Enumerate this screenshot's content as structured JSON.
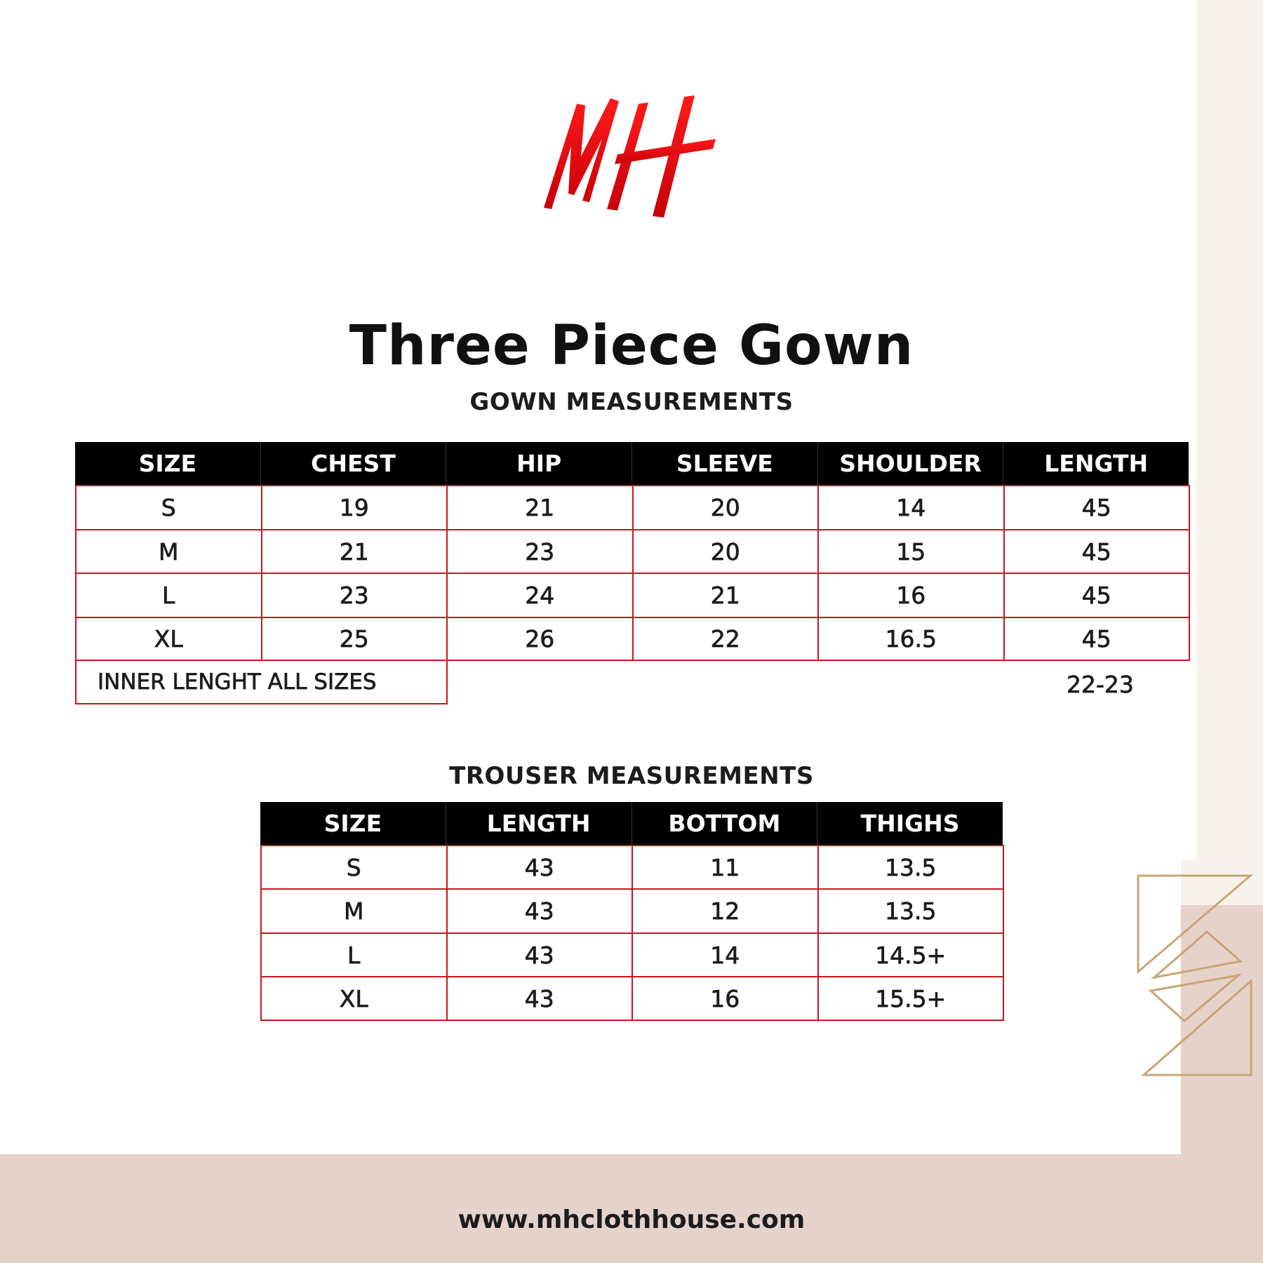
{
  "brand": {
    "logo_text": "MH",
    "logo_color": "#e3080f"
  },
  "title": "Three Piece Gown",
  "gown": {
    "heading": "GOWN MEASUREMENTS",
    "columns": [
      "SIZE",
      "CHEST",
      "HIP",
      "SLEEVE",
      "SHOULDER",
      "LENGTH"
    ],
    "rows": [
      [
        "S",
        "19",
        "21",
        "20",
        "14",
        "45"
      ],
      [
        "M",
        "21",
        "23",
        "20",
        "15",
        "45"
      ],
      [
        "L",
        "23",
        "24",
        "21",
        "16",
        "45"
      ],
      [
        "XL",
        "25",
        "26",
        "22",
        "16.5",
        "45"
      ]
    ],
    "inner_length_label": "INNER LENGHT ALL SIZES",
    "inner_length_value": "22-23"
  },
  "trouser": {
    "heading": "TROUSER MEASUREMENTS",
    "columns": [
      "SIZE",
      "LENGTH",
      "BOTTOM",
      "THIGHS"
    ],
    "rows": [
      [
        "S",
        "43",
        "11",
        "13.5"
      ],
      [
        "M",
        "43",
        "12",
        "13.5"
      ],
      [
        "L",
        "43",
        "14",
        "14.5+"
      ],
      [
        "XL",
        "43",
        "16",
        "15.5+"
      ]
    ]
  },
  "footer": {
    "website": "www.mhclothhouse.com"
  },
  "colors": {
    "table_border": "#c8161d",
    "header_bg": "#000000",
    "accent_gold": "#c9a574",
    "band": "#e5d2ca"
  }
}
